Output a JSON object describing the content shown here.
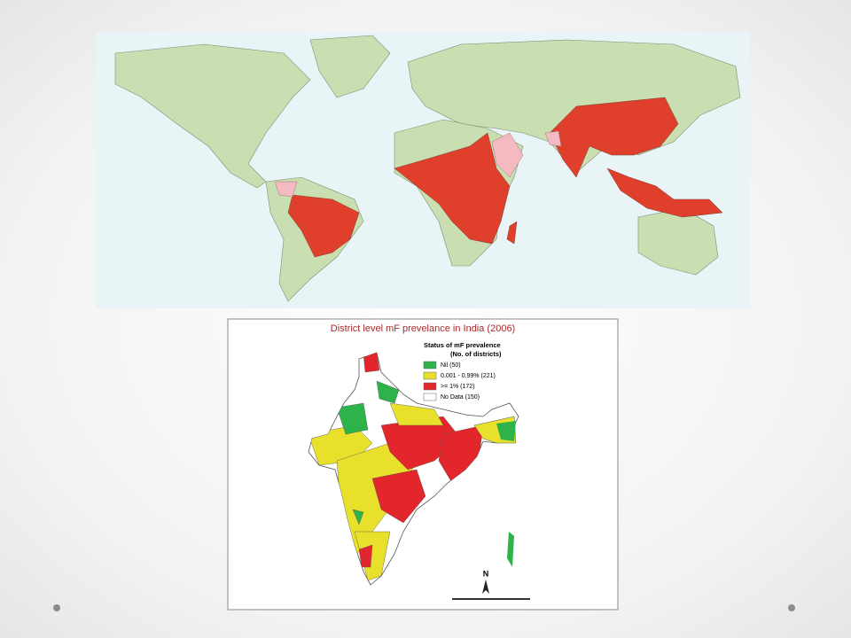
{
  "india_map": {
    "title": "District level mF prevelance in India (2006)",
    "legend": {
      "heading": "Status of mF prevalence",
      "subheading": "(No. of districts)",
      "items": [
        {
          "label": "Nil (50)",
          "color": "#2db34a"
        },
        {
          "label": "0.001 - 0.99% (221)",
          "color": "#e8e02a"
        },
        {
          "label": ">= 1% (172)",
          "color": "#e3262c"
        },
        {
          "label": "No Data (150)",
          "color": "#ffffff"
        }
      ]
    },
    "north_label": "N"
  }
}
